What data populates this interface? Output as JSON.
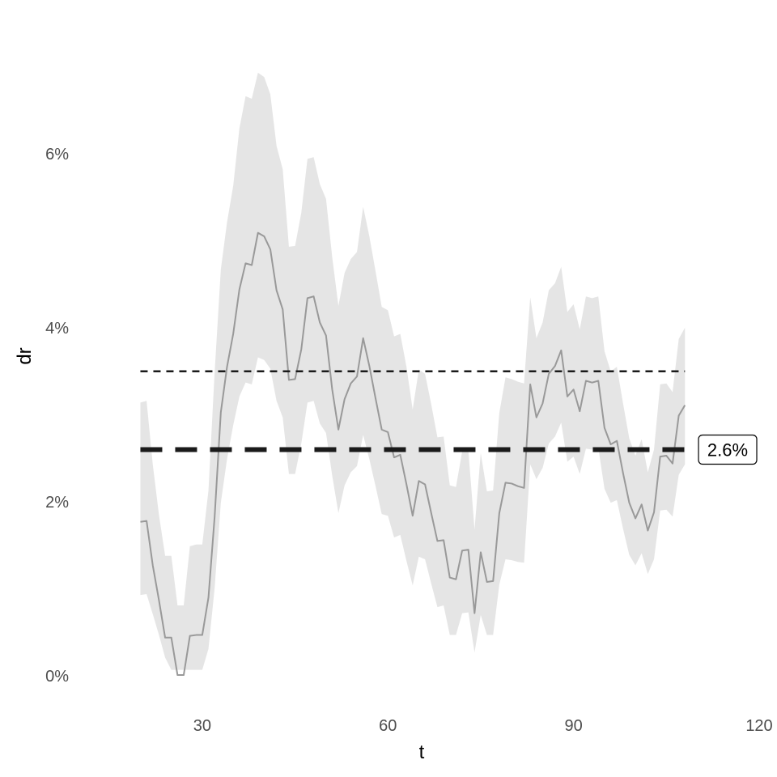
{
  "chart_data": {
    "type": "line",
    "xlabel": "t",
    "ylabel": "dr",
    "xlim": [
      10,
      120
    ],
    "ylim": [
      -0.0025,
      0.073
    ],
    "x_ticks": [
      30,
      60,
      90,
      120
    ],
    "x_tick_labels": [
      "30",
      "60",
      "90",
      "120"
    ],
    "y_ticks": [
      0,
      0.02,
      0.04,
      0.06
    ],
    "y_tick_labels": [
      "0%",
      "2%",
      "4%",
      "6%"
    ],
    "grid": false,
    "legend": "none",
    "colors": {
      "line": "#999999",
      "band": "#e5e5e5",
      "reference": "#1a1a1a",
      "axis_text": "#4d4d4d"
    },
    "series": [
      {
        "x": [
          20,
          21,
          22,
          23,
          24,
          25,
          26,
          27,
          28,
          29,
          30,
          31,
          32,
          33,
          34,
          35,
          36,
          37,
          38,
          39,
          40,
          41,
          42,
          43,
          44,
          45,
          46,
          47,
          48,
          49,
          50,
          51,
          52,
          53,
          54,
          55,
          56,
          57,
          58,
          59,
          60,
          61,
          62,
          63,
          64,
          65,
          66,
          67,
          68,
          69,
          70,
          71,
          72,
          73,
          74,
          75,
          76,
          77,
          78,
          79,
          80,
          81,
          82,
          83,
          84,
          85,
          86,
          87,
          88,
          89,
          90,
          91,
          92,
          93,
          94,
          95,
          96,
          97,
          98,
          99,
          100,
          101,
          102,
          103,
          104,
          105,
          106,
          107,
          108
        ],
        "y": [
          0.0177,
          0.0178,
          0.0127,
          0.0087,
          0.0044,
          0.0044,
          0.0001,
          0.0001,
          0.0046,
          0.0047,
          0.0047,
          0.009,
          0.0183,
          0.0303,
          0.0355,
          0.0393,
          0.0444,
          0.0474,
          0.0472,
          0.0509,
          0.0505,
          0.049,
          0.0443,
          0.0421,
          0.034,
          0.0341,
          0.0375,
          0.0434,
          0.0436,
          0.0406,
          0.0391,
          0.0329,
          0.0283,
          0.0318,
          0.0336,
          0.0344,
          0.0388,
          0.0356,
          0.0319,
          0.0283,
          0.028,
          0.0251,
          0.0254,
          0.022,
          0.0184,
          0.0224,
          0.022,
          0.0187,
          0.0155,
          0.0156,
          0.0113,
          0.0111,
          0.0144,
          0.0145,
          0.0072,
          0.0142,
          0.0108,
          0.0109,
          0.0187,
          0.0222,
          0.0221,
          0.0218,
          0.0216,
          0.0335,
          0.0297,
          0.0313,
          0.0347,
          0.0356,
          0.0374,
          0.0321,
          0.0329,
          0.0304,
          0.0339,
          0.0337,
          0.0339,
          0.0285,
          0.0266,
          0.027,
          0.0233,
          0.0199,
          0.0181,
          0.0197,
          0.0167,
          0.0188,
          0.0252,
          0.0253,
          0.0244,
          0.0299,
          0.0311
        ],
        "lower": [
          0.0093,
          0.0094,
          0.0071,
          0.0047,
          0.0021,
          0.0007,
          0.0007,
          0.0007,
          0.0007,
          0.0007,
          0.0007,
          0.0031,
          0.0101,
          0.0199,
          0.0249,
          0.0288,
          0.0321,
          0.0337,
          0.0335,
          0.0366,
          0.0363,
          0.0353,
          0.0316,
          0.0297,
          0.0232,
          0.0232,
          0.0267,
          0.0314,
          0.0316,
          0.029,
          0.0279,
          0.023,
          0.0187,
          0.0219,
          0.0234,
          0.0241,
          0.0277,
          0.0249,
          0.0218,
          0.0186,
          0.0184,
          0.0159,
          0.0162,
          0.0132,
          0.0104,
          0.0137,
          0.0134,
          0.0106,
          0.0079,
          0.0081,
          0.0047,
          0.0047,
          0.0072,
          0.0073,
          0.0027,
          0.007,
          0.0047,
          0.0047,
          0.0105,
          0.0134,
          0.0133,
          0.0131,
          0.013,
          0.0243,
          0.0226,
          0.0239,
          0.0267,
          0.0275,
          0.0291,
          0.0246,
          0.0252,
          0.0232,
          0.0261,
          0.026,
          0.0262,
          0.0215,
          0.0199,
          0.0202,
          0.0169,
          0.0139,
          0.0127,
          0.0141,
          0.0117,
          0.0134,
          0.019,
          0.0191,
          0.0183,
          0.0231,
          0.0243
        ],
        "upper": [
          0.0314,
          0.0316,
          0.0243,
          0.0185,
          0.0138,
          0.0138,
          0.0081,
          0.0081,
          0.0149,
          0.0151,
          0.0151,
          0.0213,
          0.0349,
          0.0467,
          0.0521,
          0.0563,
          0.0629,
          0.0666,
          0.0663,
          0.0693,
          0.0688,
          0.0668,
          0.0609,
          0.0582,
          0.0493,
          0.0494,
          0.0532,
          0.0594,
          0.0596,
          0.0565,
          0.0548,
          0.0481,
          0.0425,
          0.0463,
          0.0479,
          0.0487,
          0.0539,
          0.0505,
          0.0465,
          0.0424,
          0.042,
          0.039,
          0.0393,
          0.0355,
          0.0306,
          0.0352,
          0.0347,
          0.0312,
          0.0274,
          0.0275,
          0.0219,
          0.0217,
          0.0258,
          0.0259,
          0.0168,
          0.0256,
          0.0212,
          0.0213,
          0.0302,
          0.0343,
          0.0341,
          0.0338,
          0.0336,
          0.0435,
          0.0388,
          0.0406,
          0.0443,
          0.0451,
          0.047,
          0.0418,
          0.0427,
          0.0398,
          0.0436,
          0.0434,
          0.0436,
          0.0373,
          0.035,
          0.0355,
          0.0313,
          0.0273,
          0.0253,
          0.0272,
          0.0234,
          0.026,
          0.0335,
          0.0336,
          0.0326,
          0.0387,
          0.04
        ]
      }
    ],
    "reference_lines": [
      {
        "y": 0.035,
        "style": "short-dashed"
      },
      {
        "y": 0.026,
        "style": "long-dashed",
        "label": "2.6%"
      }
    ]
  }
}
